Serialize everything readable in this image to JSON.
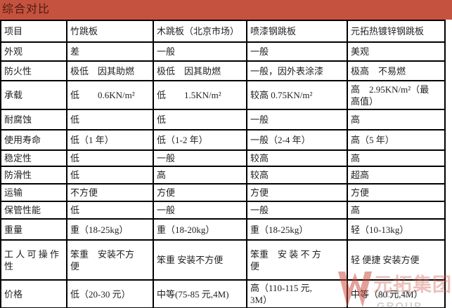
{
  "banner": {
    "title": "综合对比",
    "bg_color": "#C5523F",
    "text_color": "#4F1A10"
  },
  "table": {
    "columns": [
      "项目",
      "竹跳板",
      "木跳板（北京市场）",
      "喷漆钢跳板",
      "元拓热镀锌钢跳板"
    ],
    "rows": [
      {
        "label": "外观",
        "values": [
          "差",
          "一般",
          "一般",
          "美观"
        ]
      },
      {
        "label": "防火性",
        "values": [
          "极低　因其助燃",
          "极低　因其助燃",
          "一般，因外表涂漆",
          "极高　不易燃"
        ]
      },
      {
        "label": "承载",
        "values": [
          "低        0.6KN/m²",
          "低        1.5KN/m²",
          "较高 0.75KN/m²",
          "高　2.95KN/m²（最\n高值）"
        ]
      },
      {
        "label": "耐腐蚀",
        "values": [
          "低",
          "低",
          "一般",
          "高"
        ]
      },
      {
        "label": "使用寿命",
        "values": [
          "低（1 年）",
          "低（1-2 年）",
          "一般（2-4 年）",
          "高（5 年）"
        ]
      },
      {
        "label": "稳定性",
        "values": [
          "低",
          "一般",
          "较高",
          "高"
        ]
      },
      {
        "label": "防滑性",
        "values": [
          "低",
          "高",
          "较高",
          "超高"
        ]
      },
      {
        "label": "运输",
        "values": [
          "不方便",
          "方便",
          "方便",
          "方便"
        ]
      },
      {
        "label": "保管性能",
        "values": [
          "低",
          "一般",
          "一般",
          "高"
        ]
      },
      {
        "label": "重量",
        "values": [
          "重（18-25kg）",
          "重（18-20kg）",
          "重（18-25kg）",
          "轻（10-13kg）"
        ]
      },
      {
        "label": "工 人 可 操 作\n性",
        "values": [
          "笨重　安装不方\n便",
          "笨重 安装不方便",
          "笨重　安 装 不 方\n便",
          "轻 便捷 安装方便"
        ]
      },
      {
        "label": "价格",
        "values": [
          "低（20-30 元）",
          "中等(75-85 元,4M)",
          "高（110-115 元,\n3M）",
          "中等（80 元,4M）"
        ]
      }
    ]
  },
  "watermark": {
    "cn": "元拓集团",
    "en": "ADTO GROUP",
    "logo_color": "#C94435"
  }
}
